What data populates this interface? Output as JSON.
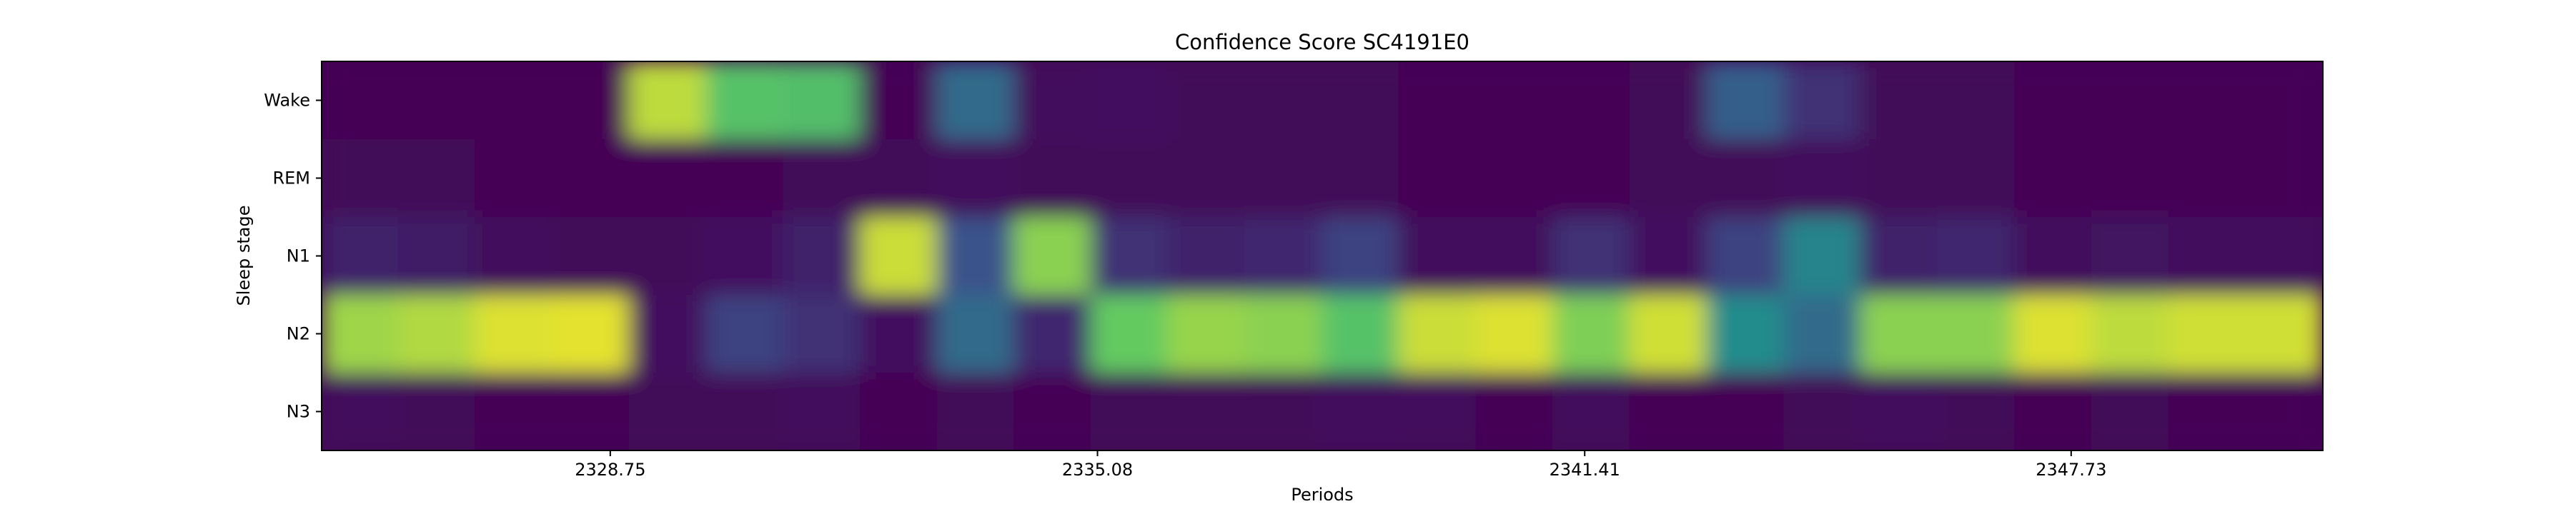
{
  "chart_data": {
    "type": "heatmap",
    "title": "Confidence Score SC4191E0",
    "xlabel": "Periods",
    "ylabel": "Sleep stage",
    "y_categories": [
      "Wake",
      "REM",
      "N1",
      "N2",
      "N3"
    ],
    "x_ticks": [
      {
        "value": 2328.75,
        "label": "2328.75"
      },
      {
        "value": 2335.08,
        "label": "2335.08"
      },
      {
        "value": 2341.41,
        "label": "2341.41"
      },
      {
        "value": 2347.73,
        "label": "2347.73"
      }
    ],
    "xlim": [
      2325.0,
      2351.0
    ],
    "colormap": "viridis",
    "value_range": [
      0,
      1
    ],
    "columns": [
      {
        "x": 2325.5,
        "values": [
          0.0,
          0.02,
          0.1,
          0.85,
          0.03
        ]
      },
      {
        "x": 2326.5,
        "values": [
          0.0,
          0.02,
          0.08,
          0.88,
          0.02
        ]
      },
      {
        "x": 2327.5,
        "values": [
          0.0,
          0.01,
          0.03,
          0.95,
          0.01
        ]
      },
      {
        "x": 2328.5,
        "values": [
          0.0,
          0.01,
          0.02,
          0.96,
          0.01
        ]
      },
      {
        "x": 2329.5,
        "values": [
          0.9,
          0.01,
          0.02,
          0.05,
          0.02
        ]
      },
      {
        "x": 2330.5,
        "values": [
          0.72,
          0.01,
          0.05,
          0.2,
          0.02
        ]
      },
      {
        "x": 2331.5,
        "values": [
          0.7,
          0.02,
          0.1,
          0.15,
          0.03
        ]
      },
      {
        "x": 2332.5,
        "values": [
          0.01,
          0.02,
          0.92,
          0.05,
          0.0
        ]
      },
      {
        "x": 2333.5,
        "values": [
          0.35,
          0.03,
          0.25,
          0.35,
          0.02
        ]
      },
      {
        "x": 2334.5,
        "values": [
          0.03,
          0.02,
          0.82,
          0.12,
          0.01
        ]
      },
      {
        "x": 2335.5,
        "values": [
          0.05,
          0.02,
          0.15,
          0.76,
          0.02
        ]
      },
      {
        "x": 2336.5,
        "values": [
          0.02,
          0.02,
          0.1,
          0.84,
          0.02
        ]
      },
      {
        "x": 2337.5,
        "values": [
          0.02,
          0.02,
          0.12,
          0.82,
          0.02
        ]
      },
      {
        "x": 2338.5,
        "values": [
          0.02,
          0.02,
          0.2,
          0.72,
          0.04
        ]
      },
      {
        "x": 2339.5,
        "values": [
          0.01,
          0.01,
          0.03,
          0.92,
          0.03
        ]
      },
      {
        "x": 2340.5,
        "values": [
          0.01,
          0.01,
          0.03,
          0.95,
          0.0
        ]
      },
      {
        "x": 2341.5,
        "values": [
          0.01,
          0.01,
          0.15,
          0.8,
          0.03
        ]
      },
      {
        "x": 2342.5,
        "values": [
          0.02,
          0.02,
          0.05,
          0.93,
          0.0
        ]
      },
      {
        "x": 2343.5,
        "values": [
          0.3,
          0.02,
          0.2,
          0.48,
          0.0
        ]
      },
      {
        "x": 2344.5,
        "values": [
          0.15,
          0.03,
          0.45,
          0.35,
          0.02
        ]
      },
      {
        "x": 2345.5,
        "values": [
          0.02,
          0.02,
          0.1,
          0.82,
          0.04
        ]
      },
      {
        "x": 2346.5,
        "values": [
          0.02,
          0.02,
          0.12,
          0.82,
          0.02
        ]
      },
      {
        "x": 2347.5,
        "values": [
          0.01,
          0.01,
          0.03,
          0.95,
          0.0
        ]
      },
      {
        "x": 2348.5,
        "values": [
          0.01,
          0.01,
          0.06,
          0.9,
          0.02
        ]
      },
      {
        "x": 2349.5,
        "values": [
          0.01,
          0.01,
          0.04,
          0.93,
          0.01
        ]
      },
      {
        "x": 2350.5,
        "values": [
          0.01,
          0.01,
          0.04,
          0.93,
          0.01
        ]
      }
    ]
  }
}
